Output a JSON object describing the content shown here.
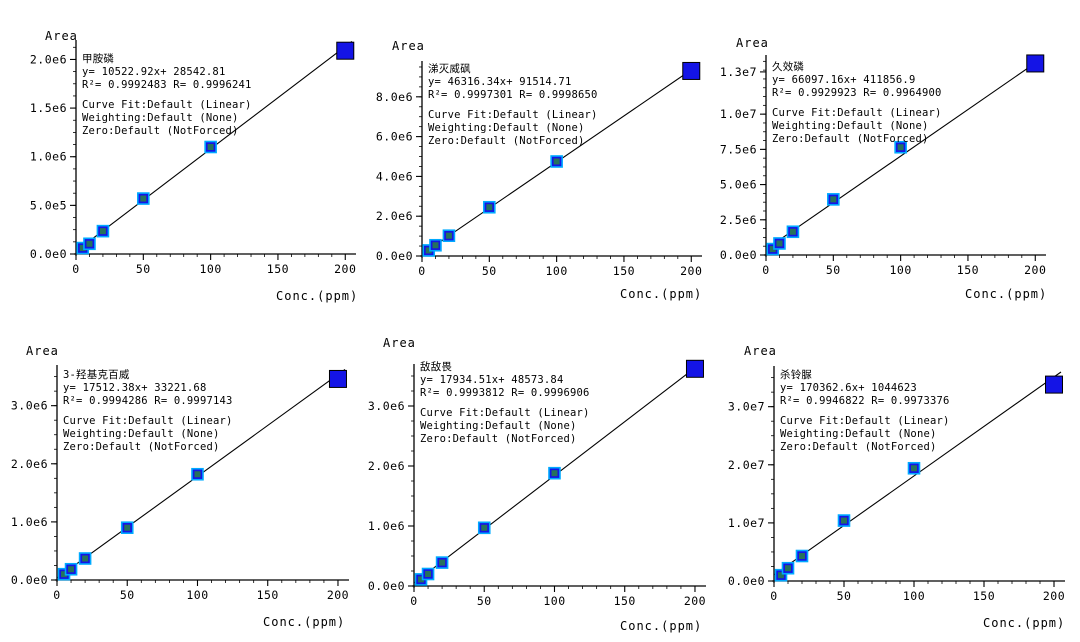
{
  "chart_data": [
    {
      "type": "scatter",
      "title": "甲胺磷",
      "equation": "y= 10522.92x+ 28542.81",
      "r_values": "R²= 0.9992483   R= 0.9996241",
      "fit_info": [
        "Curve Fit:Default (Linear)",
        "Weighting:Default (None)",
        "Zero:Default (NotForced)"
      ],
      "ylabel": "Area",
      "xlabel": "Conc.(ppm)",
      "xlim": [
        0,
        205
      ],
      "ylim": [
        0,
        2200000
      ],
      "x_ticks": [
        0,
        50,
        100,
        150,
        200
      ],
      "x_tick_labels": [
        "0",
        "50",
        "100",
        "150",
        "200"
      ],
      "y_ticks": [
        0,
        500000,
        1000000,
        1500000,
        2000000
      ],
      "y_tick_labels": [
        "0.0e0",
        "5.0e5",
        "1.0e6",
        "1.5e6",
        "2.0e6"
      ],
      "fit": {
        "slope": 10522.92,
        "intercept": 28542.81
      },
      "points": [
        {
          "x": 5,
          "y": 61000
        },
        {
          "x": 10,
          "y": 105000
        },
        {
          "x": 20,
          "y": 235000
        },
        {
          "x": 50,
          "y": 570000
        },
        {
          "x": 100,
          "y": 1100000
        },
        {
          "x": 200,
          "y": 2090000
        }
      ]
    },
    {
      "type": "scatter",
      "title": "涕灭威砜",
      "equation": "y= 46316.34x+ 91514.71",
      "r_values": "R²= 0.9997301   R= 0.9998650",
      "fit_info": [
        "Curve Fit:Default (Linear)",
        "Weighting:Default (None)",
        "Zero:Default (NotForced)"
      ],
      "ylabel": "Area",
      "xlabel": "Conc.(ppm)",
      "xlim": [
        0,
        205
      ],
      "ylim": [
        0,
        9800000
      ],
      "x_ticks": [
        0,
        50,
        100,
        150,
        200
      ],
      "x_tick_labels": [
        "0",
        "50",
        "100",
        "150",
        "200"
      ],
      "y_ticks": [
        0,
        2000000,
        4000000,
        6000000,
        8000000
      ],
      "y_tick_labels": [
        "0.0e0",
        "2.0e6",
        "4.0e6",
        "6.0e6",
        "8.0e6"
      ],
      "fit": {
        "slope": 46316.34,
        "intercept": 91514.71
      },
      "points": [
        {
          "x": 5,
          "y": 280000
        },
        {
          "x": 10,
          "y": 540000
        },
        {
          "x": 20,
          "y": 1020000
        },
        {
          "x": 50,
          "y": 2450000
        },
        {
          "x": 100,
          "y": 4750000
        },
        {
          "x": 200,
          "y": 9300000
        }
      ]
    },
    {
      "type": "scatter",
      "title": "久效磷",
      "equation": "y= 66097.16x+ 411856.9",
      "r_values": "R²= 0.9929923   R= 0.9964900",
      "fit_info": [
        "Curve Fit:Default (Linear)",
        "Weighting:Default (None)",
        "Zero:Default (NotForced)"
      ],
      "ylabel": "Area",
      "xlabel": "Conc.(ppm)",
      "xlim": [
        0,
        205
      ],
      "ylim": [
        0,
        14200000
      ],
      "x_ticks": [
        0,
        50,
        100,
        150,
        200
      ],
      "x_tick_labels": [
        "0",
        "50",
        "100",
        "150",
        "200"
      ],
      "y_ticks": [
        0,
        2500000,
        5000000,
        7500000,
        10000000,
        13000000
      ],
      "y_tick_labels": [
        "0.0e0",
        "2.5e6",
        "5.0e6",
        "7.5e6",
        "1.0e7",
        "1.3e7"
      ],
      "fit": {
        "slope": 66097.16,
        "intercept": 411856.9
      },
      "points": [
        {
          "x": 5,
          "y": 420000
        },
        {
          "x": 10,
          "y": 820000
        },
        {
          "x": 20,
          "y": 1650000
        },
        {
          "x": 50,
          "y": 3950000
        },
        {
          "x": 100,
          "y": 7650000
        },
        {
          "x": 200,
          "y": 13600000
        }
      ]
    },
    {
      "type": "scatter",
      "title": "3-羟基克百威",
      "equation": "y= 17512.38x+ 33221.68",
      "r_values": "R²= 0.9994286   R= 0.9997143",
      "fit_info": [
        "Curve Fit:Default (Linear)",
        "Weighting:Default (None)",
        "Zero:Default (NotForced)"
      ],
      "ylabel": "Area",
      "xlabel": "Conc.(ppm)",
      "xlim": [
        0,
        205
      ],
      "ylim": [
        0,
        3700000
      ],
      "x_ticks": [
        0,
        50,
        100,
        150,
        200
      ],
      "x_tick_labels": [
        "0",
        "50",
        "100",
        "150",
        "200"
      ],
      "y_ticks": [
        0,
        1000000,
        2000000,
        3000000
      ],
      "y_tick_labels": [
        "0.0e0",
        "1.0e6",
        "2.0e6",
        "3.0e6"
      ],
      "fit": {
        "slope": 17512.38,
        "intercept": 33221.68
      },
      "points": [
        {
          "x": 5,
          "y": 100000
        },
        {
          "x": 10,
          "y": 185000
        },
        {
          "x": 20,
          "y": 370000
        },
        {
          "x": 50,
          "y": 900000
        },
        {
          "x": 100,
          "y": 1820000
        },
        {
          "x": 200,
          "y": 3460000
        }
      ]
    },
    {
      "type": "scatter",
      "title": "敌敌畏",
      "equation": "y= 17934.51x+ 48573.84",
      "r_values": "R²= 0.9993812   R= 0.9996906",
      "fit_info": [
        "Curve Fit:Default (Linear)",
        "Weighting:Default (None)",
        "Zero:Default (NotForced)"
      ],
      "ylabel": "Area",
      "xlabel": "Conc.(ppm)",
      "xlim": [
        0,
        205
      ],
      "ylim": [
        0,
        3700000
      ],
      "x_ticks": [
        0,
        50,
        100,
        150,
        200
      ],
      "x_tick_labels": [
        "0",
        "50",
        "100",
        "150",
        "200"
      ],
      "y_ticks": [
        0,
        1000000,
        2000000,
        3000000
      ],
      "y_tick_labels": [
        "0.0e0",
        "1.0e6",
        "2.0e6",
        "3.0e6"
      ],
      "fit": {
        "slope": 17934.51,
        "intercept": 48573.84
      },
      "points": [
        {
          "x": 5,
          "y": 110000
        },
        {
          "x": 10,
          "y": 200000
        },
        {
          "x": 20,
          "y": 390000
        },
        {
          "x": 50,
          "y": 970000
        },
        {
          "x": 100,
          "y": 1880000
        },
        {
          "x": 200,
          "y": 3620000
        }
      ]
    },
    {
      "type": "scatter",
      "title": "杀铃脲",
      "equation": "y= 170362.6x+ 1044623",
      "r_values": "R²= 0.9946822   R= 0.9973376",
      "fit_info": [
        "Curve Fit:Default (Linear)",
        "Weighting:Default (None)",
        "Zero:Default (NotForced)"
      ],
      "ylabel": "Area",
      "xlabel": "Conc.(ppm)",
      "xlim": [
        0,
        205
      ],
      "ylim": [
        0,
        37000000
      ],
      "x_ticks": [
        0,
        50,
        100,
        150,
        200
      ],
      "x_tick_labels": [
        "0",
        "50",
        "100",
        "150",
        "200"
      ],
      "y_ticks": [
        0,
        10000000,
        20000000,
        30000000
      ],
      "y_tick_labels": [
        "0.0e0",
        "1.0e7",
        "2.0e7",
        "3.0e7"
      ],
      "fit": {
        "slope": 170362.6,
        "intercept": 1044623
      },
      "points": [
        {
          "x": 5,
          "y": 1000000
        },
        {
          "x": 10,
          "y": 2200000
        },
        {
          "x": 20,
          "y": 4300000
        },
        {
          "x": 50,
          "y": 10400000
        },
        {
          "x": 100,
          "y": 19400000
        },
        {
          "x": 200,
          "y": 33800000
        }
      ]
    }
  ],
  "colors": {
    "marker_fill": "#1414e6",
    "marker_edge": "#00aaff",
    "marker_center": "#2a8a3a",
    "axis": "#000000",
    "fit_line": "#000000"
  }
}
